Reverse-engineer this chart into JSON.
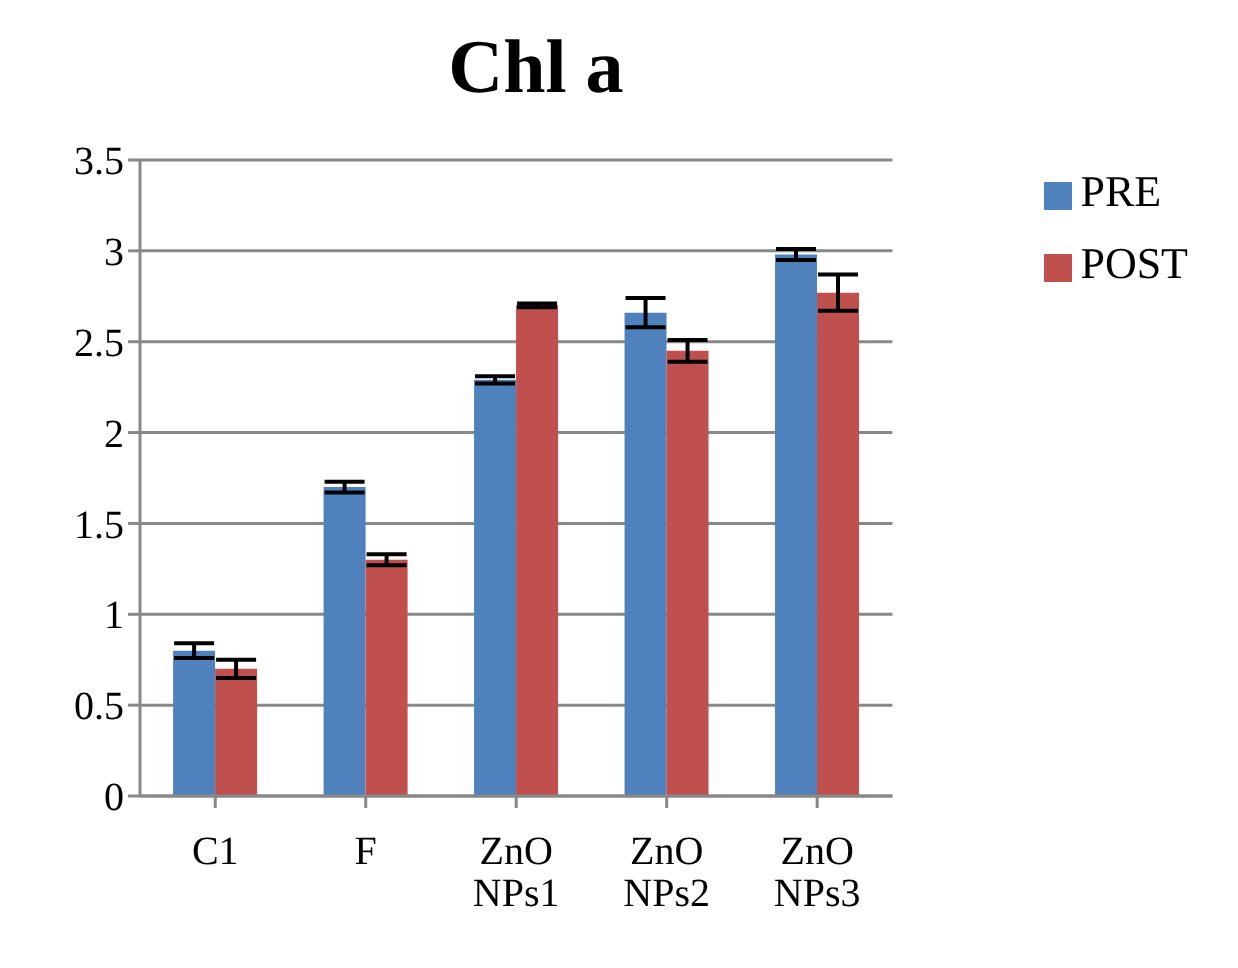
{
  "chart_data": {
    "type": "bar",
    "title": "Chl a",
    "categories": [
      "C1",
      "F",
      "ZnO NPs1",
      "ZnO NPs2",
      "ZnO NPs3"
    ],
    "series": [
      {
        "name": "PRE",
        "color": "#4f81bd",
        "values": [
          0.8,
          1.7,
          2.29,
          2.66,
          2.98
        ],
        "errors": [
          0.04,
          0.03,
          0.02,
          0.08,
          0.03
        ]
      },
      {
        "name": "POST",
        "color": "#c0504d",
        "values": [
          0.7,
          1.3,
          2.7,
          2.45,
          2.77
        ],
        "errors": [
          0.05,
          0.03,
          0.01,
          0.06,
          0.1
        ]
      }
    ],
    "ylim": [
      0,
      3.5
    ],
    "yticks": [
      0,
      0.5,
      1,
      1.5,
      2,
      2.5,
      3,
      3.5
    ],
    "grid": "y",
    "legend": "top right"
  }
}
